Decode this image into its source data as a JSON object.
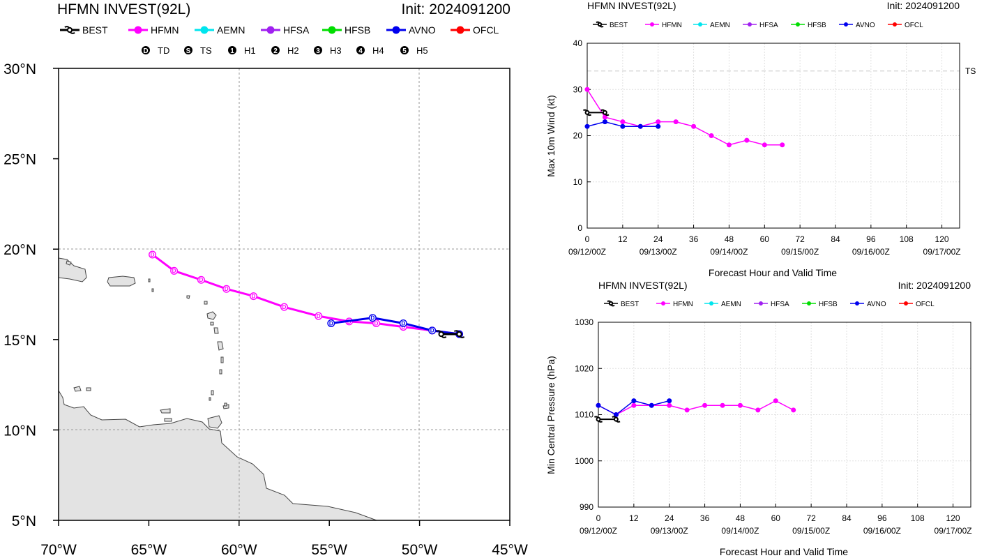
{
  "map_panel": {
    "title": "HFMN INVEST(92L)",
    "init_label": "Init: 2024091200",
    "legend": [
      {
        "key": "BEST",
        "label": "BEST",
        "color": "#000000"
      },
      {
        "key": "HFMN",
        "label": "HFMN",
        "color": "#ff00ff"
      },
      {
        "key": "AEMN",
        "label": "AEMN",
        "color": "#00e5ee"
      },
      {
        "key": "HFSA",
        "label": "HFSA",
        "color": "#a020f0"
      },
      {
        "key": "HFSB",
        "label": "HFSB",
        "color": "#00dd00"
      },
      {
        "key": "AVNO",
        "label": "AVNO",
        "color": "#0000ee"
      },
      {
        "key": "OFCL",
        "label": "OFCL",
        "color": "#ff0000"
      }
    ],
    "intensity_legend": [
      {
        "symbol": "D",
        "label": "TD"
      },
      {
        "symbol": "S",
        "label": "TS"
      },
      {
        "symbol": "1",
        "label": "H1"
      },
      {
        "symbol": "2",
        "label": "H2"
      },
      {
        "symbol": "3",
        "label": "H3"
      },
      {
        "symbol": "4",
        "label": "H4"
      },
      {
        "symbol": "5",
        "label": "H5"
      }
    ]
  },
  "wind_panel": {
    "title": "HFMN INVEST(92L)",
    "init_label": "Init: 2024091200",
    "xlabel": "Forecast Hour and Valid Time",
    "ylabel": "Max 10m Wind (kt)",
    "ts_label": "TS"
  },
  "pressure_panel": {
    "title": "HFMN INVEST(92L)",
    "init_label": "Init: 2024091200",
    "xlabel": "Forecast Hour and Valid Time",
    "ylabel": "Min Central Pressure (hPa)"
  },
  "small_legend": [
    {
      "label": "BEST",
      "color": "#000000"
    },
    {
      "label": "HFMN",
      "color": "#ff00ff"
    },
    {
      "label": "AEMN",
      "color": "#00e5ee"
    },
    {
      "label": "HFSA",
      "color": "#a020f0"
    },
    {
      "label": "HFSB",
      "color": "#00dd00"
    },
    {
      "label": "AVNO",
      "color": "#0000ee"
    },
    {
      "label": "OFCL",
      "color": "#ff0000"
    }
  ],
  "chart_data": [
    {
      "type": "line",
      "title": "HFMN INVEST(92L)",
      "subtitle": "Init: 2024091200",
      "x_unit": "degrees longitude",
      "y_unit": "degrees latitude",
      "xlim": [
        -70,
        -45
      ],
      "ylim": [
        5,
        30
      ],
      "x_ticks": [
        -70,
        -65,
        -60,
        -55,
        -50,
        -45
      ],
      "x_tick_labels": [
        "70°W",
        "65°W",
        "60°W",
        "55°W",
        "50°W",
        "45°W"
      ],
      "y_ticks": [
        5,
        10,
        15,
        20,
        25,
        30
      ],
      "y_tick_labels": [
        "5°N",
        "10°N",
        "15°N",
        "20°N",
        "25°N",
        "30°N"
      ],
      "grid_lines_lon": [
        -60,
        -50
      ],
      "grid_lines_lat": [
        10,
        20
      ],
      "series": [
        {
          "name": "HFMN",
          "color": "#ff00ff",
          "lon": [
            -47.8,
            -49.3,
            -50.9,
            -52.4,
            -53.9,
            -55.6,
            -57.5,
            -59.2,
            -60.7,
            -62.1,
            -63.6,
            -64.8
          ],
          "lat": [
            15.3,
            15.5,
            15.7,
            15.9,
            16.0,
            16.3,
            16.8,
            17.4,
            17.8,
            18.3,
            18.8,
            19.7
          ],
          "symbols": [
            "D",
            "D",
            "D",
            "D",
            "D",
            "D",
            "D",
            "D",
            "D",
            "D",
            "D",
            "D"
          ]
        },
        {
          "name": "AVNO",
          "color": "#0000ee",
          "lon": [
            -47.8,
            -49.3,
            -50.9,
            -52.6,
            -54.9
          ],
          "lat": [
            15.3,
            15.5,
            15.9,
            16.2,
            15.9
          ],
          "symbols": [
            "D",
            "D",
            "D",
            "D",
            "D"
          ]
        },
        {
          "name": "BEST",
          "color": "#000000",
          "lon": [
            -47.8,
            -48.8
          ],
          "lat": [
            15.3,
            15.3
          ],
          "symbols": [
            "D",
            "D"
          ]
        }
      ]
    },
    {
      "type": "line",
      "title": "HFMN INVEST(92L)",
      "subtitle": "Init: 2024091200",
      "xlabel": "Forecast Hour and Valid Time",
      "ylabel": "Max 10m Wind (kt)",
      "xlim": [
        0,
        126
      ],
      "ylim": [
        0,
        40
      ],
      "x_ticks": [
        0,
        12,
        24,
        36,
        48,
        60,
        72,
        84,
        96,
        108,
        120
      ],
      "y_ticks": [
        0,
        10,
        20,
        30,
        40
      ],
      "valid_time_labels": [
        {
          "hour": 0,
          "label": "09/12/00Z"
        },
        {
          "hour": 24,
          "label": "09/13/00Z"
        },
        {
          "hour": 48,
          "label": "09/14/00Z"
        },
        {
          "hour": 72,
          "label": "09/15/00Z"
        },
        {
          "hour": 96,
          "label": "09/16/00Z"
        },
        {
          "hour": 120,
          "label": "09/17/00Z"
        }
      ],
      "reference_line": {
        "y": 34,
        "label": "TS"
      },
      "series": [
        {
          "name": "HFMN",
          "color": "#ff00ff",
          "x": [
            0,
            6,
            12,
            18,
            24,
            30,
            36,
            42,
            48,
            54,
            60,
            66
          ],
          "y": [
            30,
            24,
            23,
            22,
            23,
            23,
            22,
            20,
            18,
            19,
            18,
            18
          ]
        },
        {
          "name": "AVNO",
          "color": "#0000ee",
          "x": [
            0,
            6,
            12,
            18,
            24
          ],
          "y": [
            22,
            23,
            22,
            22,
            22
          ]
        },
        {
          "name": "BEST",
          "color": "#000000",
          "x": [
            0,
            6
          ],
          "y": [
            25,
            25
          ]
        }
      ]
    },
    {
      "type": "line",
      "title": "HFMN INVEST(92L)",
      "subtitle": "Init: 2024091200",
      "xlabel": "Forecast Hour and Valid Time",
      "ylabel": "Min Central Pressure (hPa)",
      "xlim": [
        0,
        126
      ],
      "ylim": [
        990,
        1030
      ],
      "x_ticks": [
        0,
        12,
        24,
        36,
        48,
        60,
        72,
        84,
        96,
        108,
        120
      ],
      "y_ticks": [
        990,
        1000,
        1010,
        1020,
        1030
      ],
      "valid_time_labels": [
        {
          "hour": 0,
          "label": "09/12/00Z"
        },
        {
          "hour": 24,
          "label": "09/13/00Z"
        },
        {
          "hour": 48,
          "label": "09/14/00Z"
        },
        {
          "hour": 72,
          "label": "09/15/00Z"
        },
        {
          "hour": 96,
          "label": "09/16/00Z"
        },
        {
          "hour": 120,
          "label": "09/17/00Z"
        }
      ],
      "series": [
        {
          "name": "HFMN",
          "color": "#ff00ff",
          "x": [
            0,
            6,
            12,
            18,
            24,
            30,
            36,
            42,
            48,
            54,
            60,
            66
          ],
          "y": [
            1012,
            1010,
            1012,
            1012,
            1012,
            1011,
            1012,
            1012,
            1012,
            1011,
            1013,
            1011
          ]
        },
        {
          "name": "AVNO",
          "color": "#0000ee",
          "x": [
            0,
            6,
            12,
            18,
            24
          ],
          "y": [
            1012,
            1010,
            1013,
            1012,
            1013
          ]
        },
        {
          "name": "BEST",
          "color": "#000000",
          "x": [
            0,
            6
          ],
          "y": [
            1009,
            1009
          ]
        }
      ]
    }
  ]
}
